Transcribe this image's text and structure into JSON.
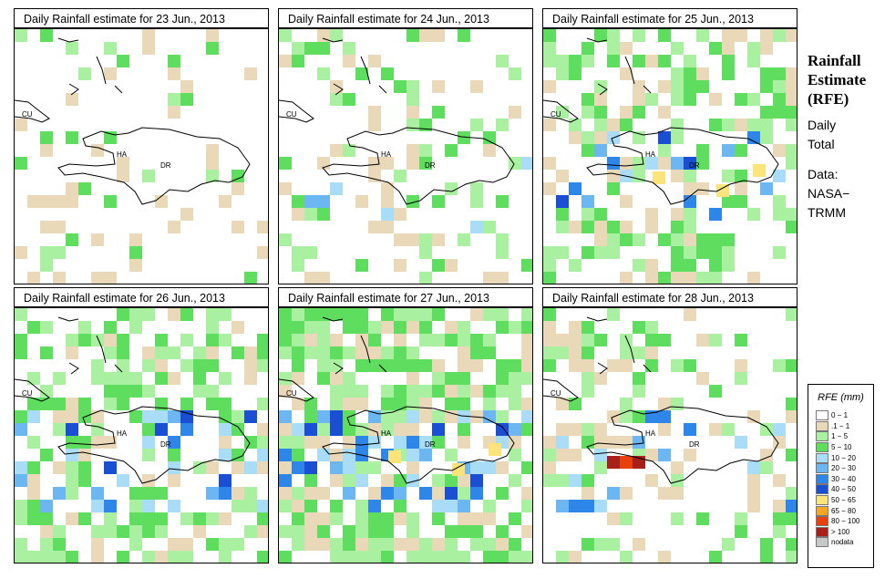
{
  "panels": [
    {
      "id": "p23",
      "title": "Daily Rainfall estimate for  23 Jun., 2013"
    },
    {
      "id": "p24",
      "title": "Daily Rainfall estimate for  24 Jun., 2013"
    },
    {
      "id": "p25",
      "title": "Daily Rainfall estimate for  25 Jun., 2013"
    },
    {
      "id": "p26",
      "title": "Daily Rainfall estimate for  26 Jun., 2013"
    },
    {
      "id": "p27",
      "title": "Daily Rainfall estimate for  27 Jun., 2013"
    },
    {
      "id": "p28",
      "title": "Daily Rainfall estimate for  28 Jun., 2013"
    }
  ],
  "map_labels": {
    "cu": "CU",
    "ha": "HA",
    "dr": "DR"
  },
  "side": {
    "title_1": "Rainfall",
    "title_2": "Estimate",
    "title_3": "(RFE)",
    "daily": "Daily",
    "total": "Total",
    "data": "Data:",
    "nasa": "NASA−",
    "trmm": "TRMM"
  },
  "legend": {
    "title": "RFE (mm)",
    "items": [
      {
        "label": "0 − 1",
        "color": "#ffffff"
      },
      {
        "label": ".1 − 1",
        "color": "#ead9b8"
      },
      {
        "label": "1 − 5",
        "color": "#a9f0a0"
      },
      {
        "label": "5 − 10",
        "color": "#5fdd5f"
      },
      {
        "label": "10 − 20",
        "color": "#a8dcf7"
      },
      {
        "label": "20 − 30",
        "color": "#6cb6f2"
      },
      {
        "label": "30 − 40",
        "color": "#2e86e8"
      },
      {
        "label": "40 − 50",
        "color": "#1a4fd4"
      },
      {
        "label": "50 − 65",
        "color": "#fde47a"
      },
      {
        "label": "65 − 80",
        "color": "#f5a623"
      },
      {
        "label": "80 − 100",
        "color": "#e8410c"
      },
      {
        "label": "> 100",
        "color": "#a8201a"
      },
      {
        "label": "nodata",
        "color": "#c8c8c8"
      }
    ]
  }
}
